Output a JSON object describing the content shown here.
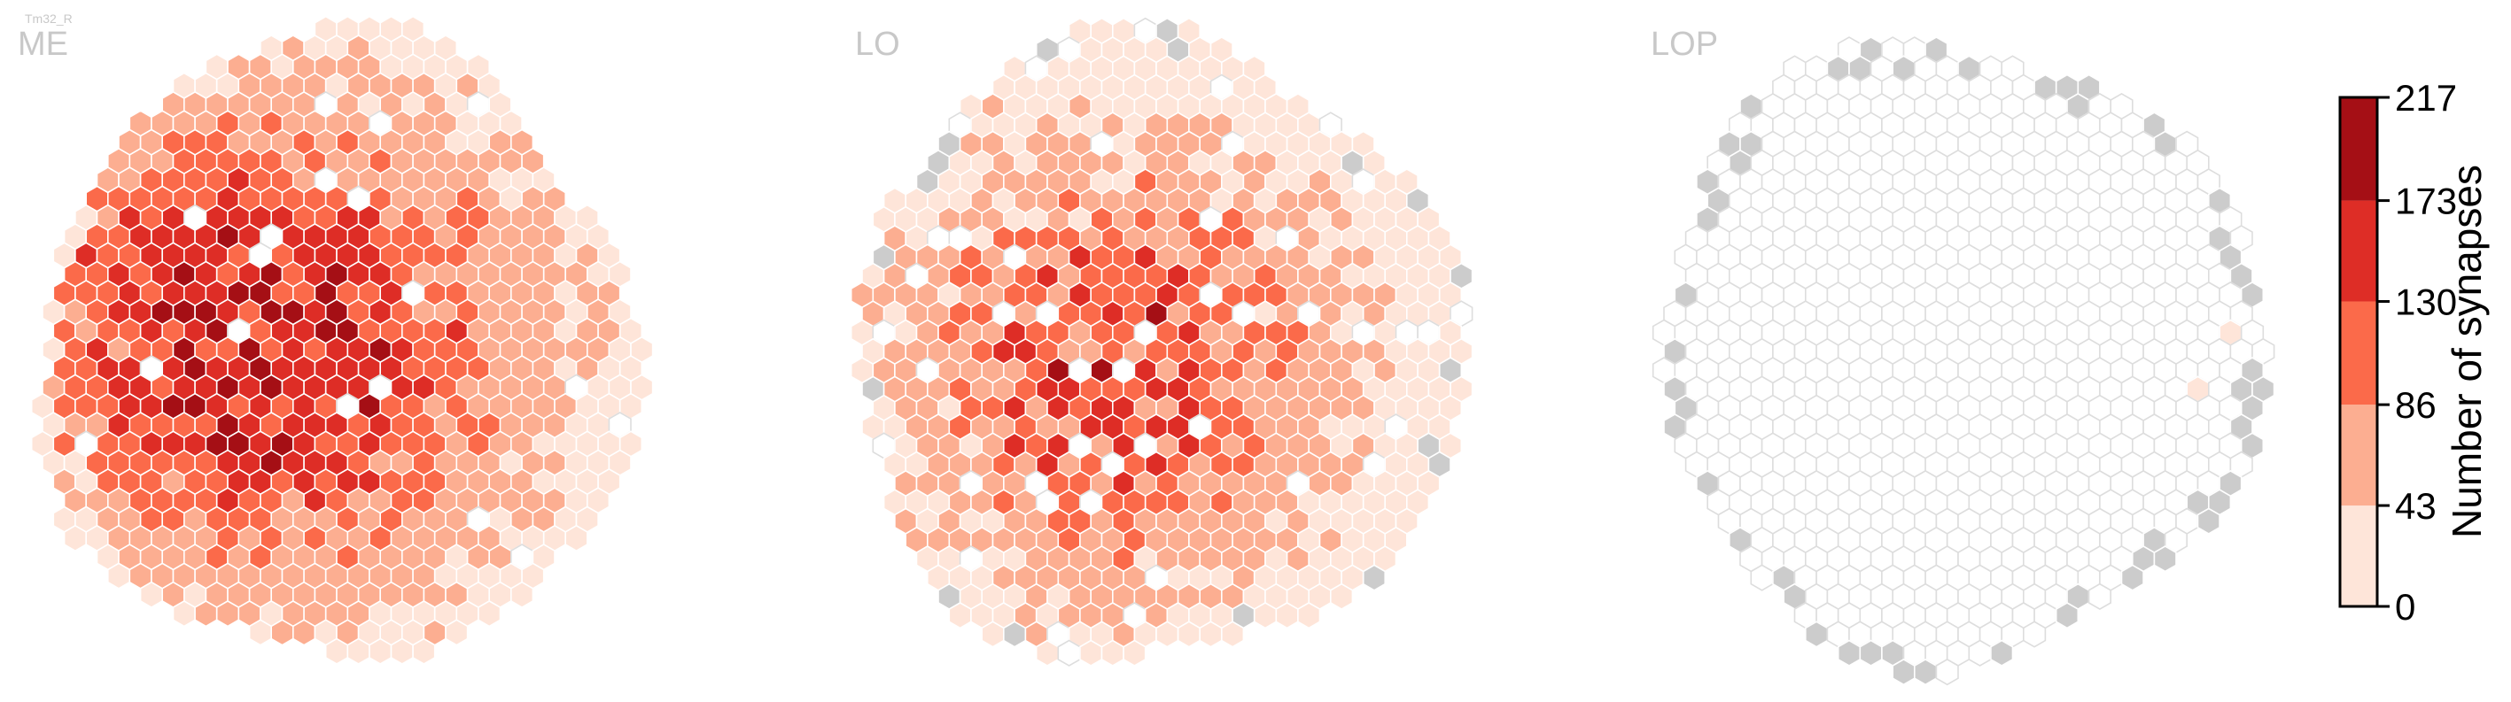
{
  "chart_data": {
    "type": "heatmap",
    "cell_type": "Tm32_R",
    "panels": [
      {
        "label": "ME"
      },
      {
        "label": "LO"
      },
      {
        "label": "LOP"
      }
    ],
    "colorbar": {
      "title": "Number of synapses",
      "ticks": [
        0,
        43,
        86,
        130,
        173,
        217
      ],
      "tick_labels": [
        "0",
        "43",
        "86",
        "130",
        "173",
        "217"
      ],
      "range": [
        0,
        217
      ],
      "colors": [
        "#fee5d9",
        "#fcae91",
        "#fb6a4a",
        "#de2d26",
        "#a50f15"
      ]
    },
    "colors": {
      "no_data": "#cccccc",
      "empty_fill": "#ffffff",
      "empty_edge": "#dddddd",
      "label_gray": "#c8c8c8"
    }
  }
}
